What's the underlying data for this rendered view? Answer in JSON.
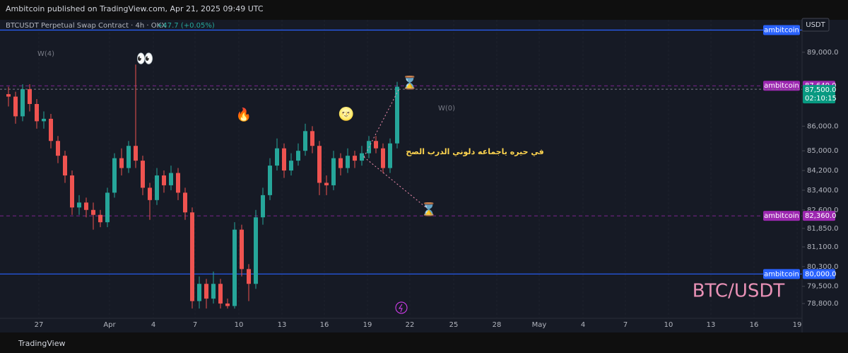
{
  "header": {
    "title": "Ambitcoin published on TradingView.com, Apr 21, 2025 09:49 UTC"
  },
  "chart_data": {
    "type": "candlestick",
    "title": "BTCUSDT Perpetual Swap Contract · 4h · OKX",
    "change": "+47.7 (+0.05%)",
    "currency": "USDT",
    "watermark": "BTC/USDT",
    "up_color": "#26a69a",
    "down_color": "#ef5350",
    "open": [
      87300,
      87200,
      86400,
      87500,
      86900,
      86200,
      86300,
      85400,
      84800,
      84000,
      82700,
      82900,
      82600,
      82400,
      82100,
      83300,
      84700,
      84300,
      85200,
      84600,
      83500,
      83000,
      84000,
      83600,
      84100,
      83300,
      82500,
      78900,
      79600,
      79000,
      79600,
      78800,
      78700,
      81800,
      80200,
      79600,
      82300,
      83200,
      84400,
      85100,
      84200,
      84600,
      85000,
      85800,
      85200,
      83700,
      83600,
      84700,
      84300,
      84800,
      84600,
      84900,
      85400,
      85100,
      84300,
      85300
    ],
    "high": [
      87600,
      87400,
      87700,
      87700,
      87100,
      86600,
      86500,
      85600,
      85000,
      84200,
      83200,
      83100,
      82900,
      82600,
      83500,
      84900,
      85100,
      85400,
      88500,
      84800,
      83700,
      84300,
      84200,
      84400,
      84300,
      83500,
      82700,
      79900,
      79800,
      80100,
      79800,
      79000,
      82100,
      82000,
      80400,
      82600,
      83500,
      84700,
      85500,
      85300,
      84900,
      85300,
      86100,
      86000,
      85400,
      84000,
      85000,
      84900,
      85100,
      85000,
      85200,
      85600,
      85600,
      85300,
      85500,
      87800
    ],
    "low": [
      86800,
      86100,
      86200,
      86600,
      85900,
      85900,
      85100,
      84500,
      83700,
      82400,
      82400,
      82300,
      81800,
      81900,
      81900,
      83100,
      84000,
      84100,
      84300,
      83200,
      82200,
      82800,
      83300,
      83400,
      83000,
      82200,
      78600,
      78600,
      78600,
      78800,
      78600,
      78600,
      78600,
      79900,
      78900,
      79400,
      82000,
      83000,
      84200,
      83900,
      84000,
      84400,
      84800,
      84900,
      83200,
      83200,
      83400,
      84000,
      84100,
      84300,
      84400,
      84700,
      84900,
      84100,
      84100,
      85100
    ],
    "close": [
      87200,
      86400,
      87500,
      86900,
      86200,
      86300,
      85400,
      84800,
      84000,
      82700,
      82900,
      82600,
      82400,
      82100,
      83300,
      84700,
      84300,
      85200,
      84600,
      83500,
      83000,
      84000,
      83600,
      84100,
      83300,
      82500,
      78900,
      79600,
      79000,
      79600,
      78800,
      78700,
      81800,
      80200,
      79600,
      82300,
      83200,
      84400,
      85100,
      84200,
      84600,
      85000,
      85800,
      85200,
      83700,
      83600,
      84700,
      84300,
      84800,
      84600,
      84900,
      85400,
      85100,
      84300,
      85300,
      87600
    ],
    "ylim": [
      78200,
      90260
    ],
    "yticks": [
      {
        "value": 89000,
        "label": "89,000.0"
      },
      {
        "value": 86000,
        "label": "86,000.0"
      },
      {
        "value": 85000,
        "label": "85,000.0"
      },
      {
        "value": 84200,
        "label": "84,200.0"
      },
      {
        "value": 83400,
        "label": "83,400.0"
      },
      {
        "value": 82600,
        "label": "82,600.0"
      },
      {
        "value": 81850,
        "label": "81,850.0"
      },
      {
        "value": 81100,
        "label": "81,100.0"
      },
      {
        "value": 80300,
        "label": "80,300.0"
      },
      {
        "value": 79500,
        "label": "79,500.0"
      },
      {
        "value": 78800,
        "label": "78,800.0"
      }
    ],
    "xlabels": [
      "27",
      "Apr",
      "4",
      "7",
      "10",
      "13",
      "16",
      "19",
      "22",
      "25",
      "28",
      "May",
      "4",
      "7",
      "10",
      "13",
      "16",
      "19"
    ],
    "hlines": [
      {
        "value": 89900,
        "tag": "ambitcoin",
        "color": "#2962ff"
      },
      {
        "value": 87640,
        "label": "87,640.0",
        "tag": "ambitcoin",
        "color": "#9c27b0"
      },
      {
        "value": 82360,
        "label": "82,360.0",
        "tag": "ambitcoin",
        "color": "#9c27b0"
      },
      {
        "value": 80000,
        "label": "80,000.0",
        "tag": "ambitcoin",
        "color": "#2962ff"
      }
    ],
    "last_price": {
      "value": 87500,
      "label": "87,500.0",
      "countdown": "02:10:15",
      "color": "#089981"
    },
    "annotations": [
      "W(4)",
      "👀",
      "🔥",
      "🌝",
      "⌛",
      "W(0)",
      "⌛",
      "في حيره   ياجماعه   دلوني   الدرب  الصح"
    ]
  },
  "footer": {
    "brand": "TradingView"
  }
}
